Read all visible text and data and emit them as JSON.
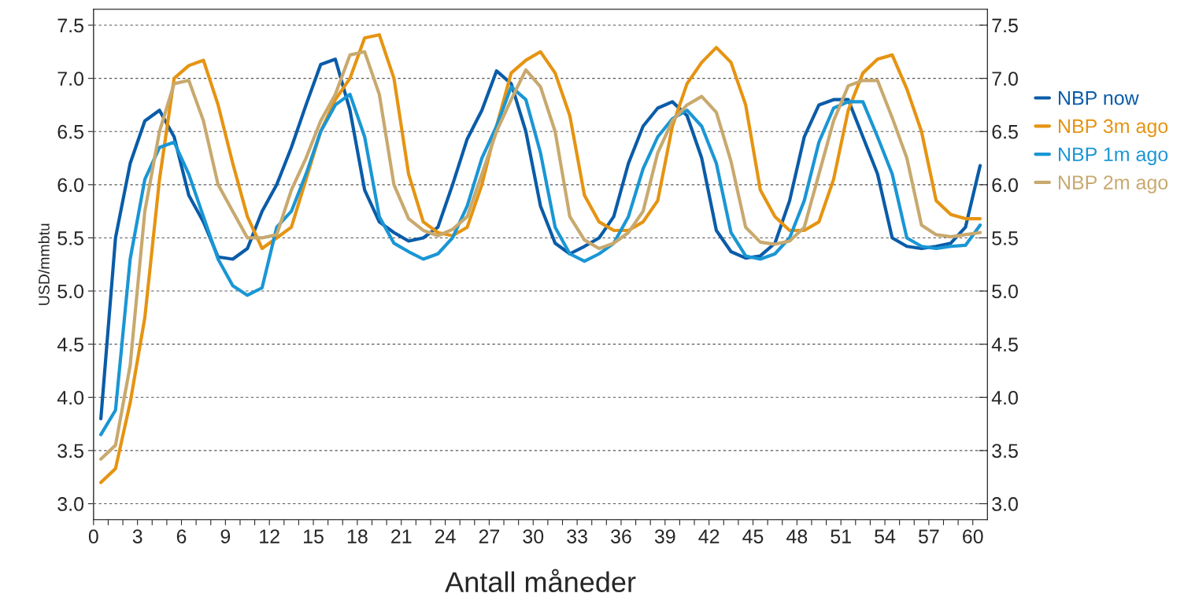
{
  "chart_data": {
    "type": "line",
    "xlabel": "Antall måneder",
    "ylabel": "USD/mmbtu",
    "xlim": [
      0,
      61
    ],
    "xticks": [
      0,
      {
        "value": 1,
        "label": null
      },
      {
        "value": 2,
        "label": null
      },
      3,
      {
        "value": 4,
        "label": null
      },
      {
        "value": 5,
        "label": null
      },
      6,
      {
        "value": 7,
        "label": null
      },
      {
        "value": 8,
        "label": null
      },
      9,
      {
        "value": 10,
        "label": null
      },
      {
        "value": 11,
        "label": null
      },
      12,
      {
        "value": 13,
        "label": null
      },
      {
        "value": 14,
        "label": null
      },
      15,
      {
        "value": 16,
        "label": null
      },
      {
        "value": 17,
        "label": null
      },
      18,
      {
        "value": 19,
        "label": null
      },
      {
        "value": 20,
        "label": null
      },
      21,
      {
        "value": 22,
        "label": null
      },
      {
        "value": 23,
        "label": null
      },
      24,
      {
        "value": 25,
        "label": null
      },
      {
        "value": 26,
        "label": null
      },
      27,
      {
        "value": 28,
        "label": null
      },
      {
        "value": 29,
        "label": null
      },
      30,
      {
        "value": 31,
        "label": null
      },
      {
        "value": 32,
        "label": null
      },
      33,
      {
        "value": 34,
        "label": null
      },
      {
        "value": 35,
        "label": null
      },
      36,
      {
        "value": 37,
        "label": null
      },
      {
        "value": 38,
        "label": null
      },
      39,
      {
        "value": 40,
        "label": null
      },
      {
        "value": 41,
        "label": null
      },
      42,
      {
        "value": 43,
        "label": null
      },
      {
        "value": 44,
        "label": null
      },
      45,
      {
        "value": 46,
        "label": null
      },
      {
        "value": 47,
        "label": null
      },
      48,
      {
        "value": 49,
        "label": null
      },
      {
        "value": 50,
        "label": null
      },
      51,
      {
        "value": 52,
        "label": null
      },
      {
        "value": 53,
        "label": null
      },
      54,
      {
        "value": 55,
        "label": null
      },
      {
        "value": 56,
        "label": null
      },
      57,
      {
        "value": 58,
        "label": null
      },
      {
        "value": 59,
        "label": null
      },
      60
    ],
    "ylim": [
      2.85,
      7.65
    ],
    "yticks": [
      {
        "value": 3,
        "label": "3.0"
      },
      {
        "value": 3.5,
        "label": "3.5"
      },
      {
        "value": 4,
        "label": "4.0"
      },
      {
        "value": 4.5,
        "label": "4.5"
      },
      {
        "value": 5,
        "label": "5.0"
      },
      {
        "value": 5.5,
        "label": "5.5"
      },
      {
        "value": 6,
        "label": "6.0"
      },
      {
        "value": 6.5,
        "label": "6.5"
      },
      {
        "value": 7,
        "label": "7.0"
      },
      {
        "value": 7.5,
        "label": "7.5"
      }
    ],
    "y2lim": [
      2.85,
      7.65
    ],
    "y2ticks": [
      {
        "value": 3,
        "label": "3.0"
      },
      {
        "value": 3.5,
        "label": "3.5"
      },
      {
        "value": 4,
        "label": "4.0"
      },
      {
        "value": 4.5,
        "label": "4.5"
      },
      {
        "value": 5,
        "label": "5.0"
      },
      {
        "value": 5.5,
        "label": "5.5"
      },
      {
        "value": 6,
        "label": "6.0"
      },
      {
        "value": 6.5,
        "label": "6.5"
      },
      {
        "value": 7,
        "label": "7.0"
      },
      {
        "value": 7.5,
        "label": "7.5"
      }
    ],
    "grid": "y",
    "legend": "right",
    "marker": "none",
    "line_style": "solid",
    "x": [
      0.5,
      1.5,
      2.5,
      3.5,
      4.5,
      5.5,
      6.5,
      7.5,
      8.5,
      9.5,
      10.5,
      11.5,
      12.5,
      13.5,
      14.5,
      15.5,
      16.5,
      17.5,
      18.5,
      19.5,
      20.5,
      21.5,
      22.5,
      23.5,
      24.5,
      25.5,
      26.5,
      27.5,
      28.5,
      29.5,
      30.5,
      31.5,
      32.5,
      33.5,
      34.5,
      35.5,
      36.5,
      37.5,
      38.5,
      39.5,
      40.5,
      41.5,
      42.5,
      43.5,
      44.5,
      45.5,
      46.5,
      47.5,
      48.5,
      49.5,
      50.5,
      51.5,
      52.5,
      53.5,
      54.5,
      55.5,
      56.5,
      57.5,
      58.5,
      59.5,
      60.5
    ],
    "series": [
      {
        "name": "NBP now",
        "color": "#0a5ca8",
        "values": [
          3.8,
          5.5,
          6.2,
          6.6,
          6.7,
          6.45,
          5.9,
          5.65,
          5.32,
          5.3,
          5.4,
          5.75,
          6.0,
          6.35,
          6.75,
          7.13,
          7.18,
          6.7,
          5.95,
          5.65,
          5.55,
          5.47,
          5.5,
          5.6,
          6.0,
          6.43,
          6.7,
          7.07,
          6.95,
          6.5,
          5.8,
          5.45,
          5.35,
          5.42,
          5.5,
          5.7,
          6.2,
          6.55,
          6.72,
          6.78,
          6.65,
          6.25,
          5.57,
          5.37,
          5.31,
          5.33,
          5.45,
          5.85,
          6.45,
          6.75,
          6.8,
          6.8,
          6.45,
          6.1,
          5.5,
          5.42,
          5.4,
          5.42,
          5.45,
          5.6,
          6.18
        ]
      },
      {
        "name": "NBP 3m ago",
        "color": "#e59412",
        "values": [
          3.2,
          3.33,
          3.95,
          4.75,
          6.05,
          7.0,
          7.12,
          7.17,
          6.75,
          6.2,
          5.7,
          5.4,
          5.5,
          5.6,
          6.05,
          6.5,
          6.8,
          7.0,
          7.38,
          7.41,
          7.0,
          6.1,
          5.65,
          5.55,
          5.52,
          5.6,
          6.0,
          6.55,
          7.05,
          7.17,
          7.25,
          7.05,
          6.65,
          5.9,
          5.65,
          5.57,
          5.57,
          5.65,
          5.85,
          6.55,
          6.95,
          7.15,
          7.29,
          7.15,
          6.75,
          5.95,
          5.7,
          5.57,
          5.57,
          5.65,
          6.05,
          6.7,
          7.05,
          7.18,
          7.22,
          6.9,
          6.5,
          5.85,
          5.72,
          5.68,
          5.68
        ]
      },
      {
        "name": "NBP 1m ago",
        "color": "#1a96d4",
        "values": [
          3.65,
          3.88,
          5.3,
          6.05,
          6.35,
          6.4,
          6.1,
          5.7,
          5.3,
          5.05,
          4.96,
          5.03,
          5.6,
          5.75,
          6.1,
          6.5,
          6.75,
          6.85,
          6.45,
          5.7,
          5.45,
          5.37,
          5.3,
          5.35,
          5.5,
          5.8,
          6.25,
          6.55,
          6.92,
          6.8,
          6.3,
          5.6,
          5.35,
          5.28,
          5.35,
          5.45,
          5.7,
          6.15,
          6.45,
          6.62,
          6.7,
          6.55,
          6.2,
          5.55,
          5.33,
          5.3,
          5.35,
          5.5,
          5.85,
          6.4,
          6.72,
          6.78,
          6.78,
          6.45,
          6.1,
          5.5,
          5.42,
          5.4,
          5.42,
          5.43,
          5.62
        ]
      },
      {
        "name": "NBP 2m ago",
        "color": "#c8a96e",
        "values": [
          3.42,
          3.55,
          4.3,
          5.75,
          6.5,
          6.95,
          6.98,
          6.6,
          6.0,
          5.75,
          5.5,
          5.5,
          5.53,
          5.95,
          6.25,
          6.6,
          6.85,
          7.22,
          7.25,
          6.85,
          6.0,
          5.68,
          5.57,
          5.52,
          5.58,
          5.7,
          6.1,
          6.5,
          6.8,
          7.08,
          6.92,
          6.5,
          5.7,
          5.48,
          5.4,
          5.45,
          5.55,
          5.75,
          6.3,
          6.6,
          6.75,
          6.83,
          6.68,
          6.22,
          5.6,
          5.46,
          5.44,
          5.47,
          5.6,
          6.1,
          6.6,
          6.93,
          6.98,
          6.98,
          6.63,
          6.25,
          5.62,
          5.53,
          5.51,
          5.53,
          5.55
        ]
      }
    ]
  }
}
